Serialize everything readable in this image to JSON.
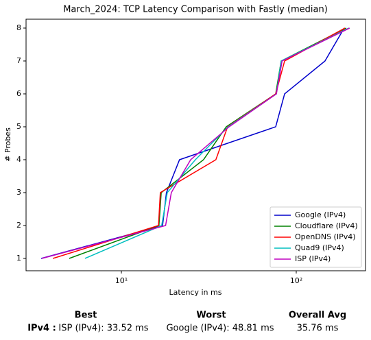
{
  "chart_data": {
    "type": "line",
    "title": "March_2024: TCP Latency Comparison with Fastly (median)",
    "x_label": "Latency in ms",
    "y_label": "# Probes",
    "xscale": "log",
    "y": [
      1,
      2,
      3,
      4,
      5,
      6,
      7,
      8
    ],
    "series": [
      {
        "name": "Google (IPv4)",
        "color": "#0000cc",
        "x": [
          3.48,
          17.2,
          18.1,
          21.5,
          76.3,
          85.8,
          146,
          188
        ]
      },
      {
        "name": "Cloudflare (IPv4)",
        "color": "#008000",
        "x": [
          5.03,
          16.4,
          16.9,
          29.5,
          39.8,
          76.3,
          82,
          193
        ]
      },
      {
        "name": "OpenDNS (IPv4)",
        "color": "#ff0000",
        "x": [
          4.06,
          16.3,
          16.7,
          34.7,
          40.5,
          76.3,
          85.8,
          190
        ]
      },
      {
        "name": "Quad9 (IPv4)",
        "color": "#00bfbf",
        "x": [
          6.19,
          17.0,
          18.3,
          26.5,
          40.8,
          77,
          82,
          200
        ]
      },
      {
        "name": "ISP (IPv4)",
        "color": "#bf00bf",
        "x": [
          3.51,
          17.9,
          19.3,
          24.9,
          41.3,
          77,
          83,
          202
        ]
      }
    ],
    "xlim": [
      2.85,
      249
    ],
    "xticks": [
      {
        "value": 10,
        "label": "10¹"
      },
      {
        "value": 100,
        "label": "10²"
      }
    ],
    "ylim": [
      0.625,
      8.27
    ],
    "yticks": [
      1,
      2,
      3,
      4,
      5,
      6,
      7,
      8
    ],
    "legend": "lower right"
  },
  "summary": {
    "headers": [
      "Best",
      "Worst",
      "Overall Avg"
    ],
    "rows": [
      {
        "label": "IPv4 :",
        "best": "ISP (IPv4): 33.52 ms",
        "worst": "Google (IPv4): 48.81 ms",
        "avg": "35.76 ms"
      }
    ]
  }
}
